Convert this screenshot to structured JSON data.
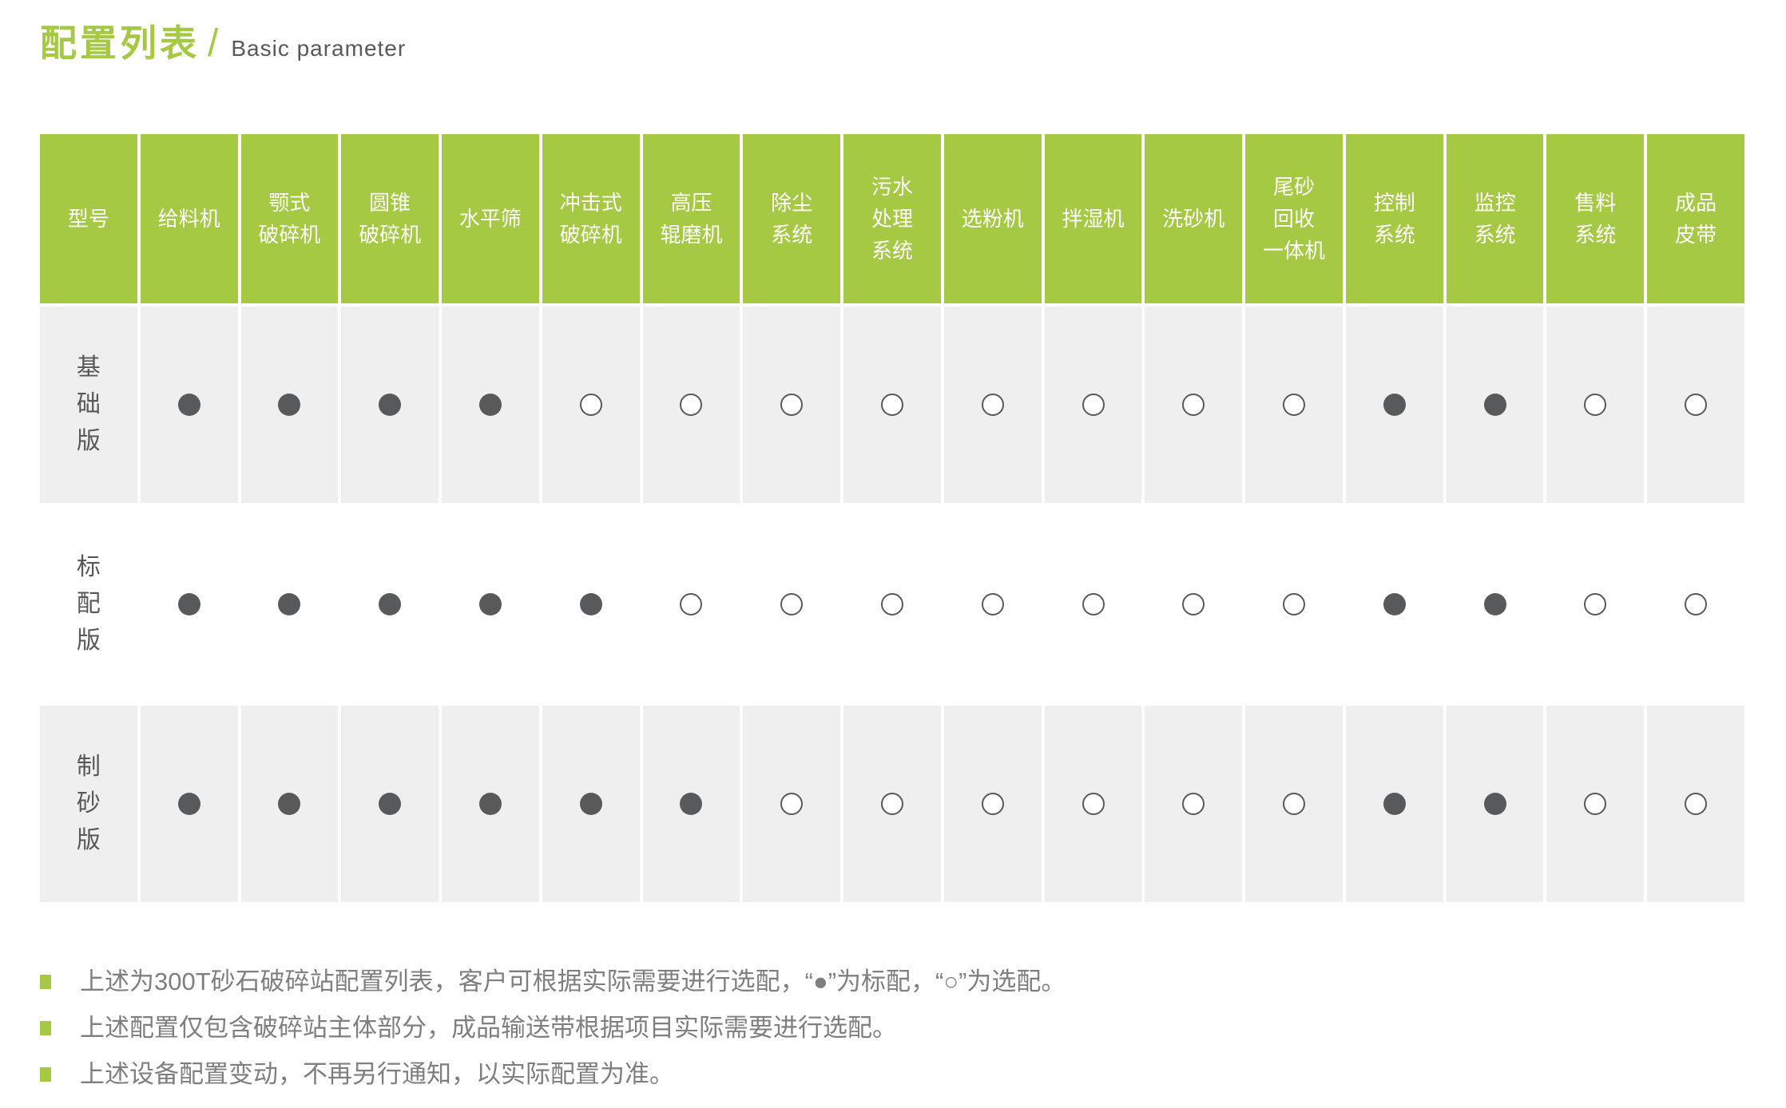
{
  "header": {
    "title_zh": "配置列表",
    "divider": "/",
    "title_en": "Basic parameter"
  },
  "table": {
    "columns": [
      "型号",
      "给料机",
      [
        "颚式",
        "破碎机"
      ],
      [
        "圆锥",
        "破碎机"
      ],
      "水平筛",
      [
        "冲击式",
        "破碎机"
      ],
      [
        "高压",
        "辊磨机"
      ],
      [
        "除尘",
        "系统"
      ],
      [
        "污水",
        "处理",
        "系统"
      ],
      "选粉机",
      "拌湿机",
      "洗砂机",
      [
        "尾砂",
        "回收",
        "一体机"
      ],
      [
        "控制",
        "系统"
      ],
      [
        "监控",
        "系统"
      ],
      [
        "售料",
        "系统"
      ],
      [
        "成品",
        "皮带"
      ]
    ],
    "rows": [
      {
        "label": "基础版",
        "cells": [
          1,
          1,
          1,
          1,
          0,
          0,
          0,
          0,
          0,
          0,
          0,
          0,
          1,
          1,
          0,
          0
        ]
      },
      {
        "label": "标配版",
        "cells": [
          1,
          1,
          1,
          1,
          1,
          0,
          0,
          0,
          0,
          0,
          0,
          0,
          1,
          1,
          0,
          0
        ]
      },
      {
        "label": "制砂版",
        "cells": [
          1,
          1,
          1,
          1,
          1,
          1,
          0,
          0,
          0,
          0,
          0,
          0,
          1,
          1,
          0,
          0
        ]
      }
    ],
    "symbols": {
      "filled": "●",
      "empty": "○"
    }
  },
  "notes": [
    "上述为300T砂石破碎站配置列表，客户可根据实际需要进行选配，“●”为标配，“○”为选配。",
    "上述配置仅包含破碎站主体部分，成品输送带根据项目实际需要进行选配。",
    "上述设备配置变动，不再另行通知，以实际配置为准。"
  ],
  "colors": {
    "green": "#a6c943",
    "dot_dark": "#58595b",
    "row_gray": "#efefef",
    "note_text": "#7f7f7f"
  }
}
